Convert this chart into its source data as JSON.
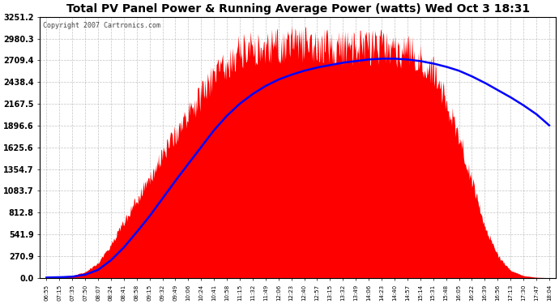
{
  "title": "Total PV Panel Power & Running Average Power (watts) Wed Oct 3 18:31",
  "copyright": "Copyright 2007 Cartronics.com",
  "background_color": "#ffffff",
  "plot_bg_color": "#ffffff",
  "grid_color": "#aaaaaa",
  "fill_color": "#ff0000",
  "line_color": "#0000ff",
  "yticks": [
    0.0,
    270.9,
    541.9,
    812.8,
    1083.7,
    1354.7,
    1625.6,
    1896.6,
    2167.5,
    2438.4,
    2709.4,
    2980.3,
    3251.2
  ],
  "ymax": 3251.2,
  "xtick_labels": [
    "06:55",
    "07:15",
    "07:35",
    "07:50",
    "08:07",
    "08:24",
    "08:41",
    "08:58",
    "09:15",
    "09:32",
    "09:49",
    "10:06",
    "10:24",
    "10:41",
    "10:58",
    "11:15",
    "11:32",
    "11:49",
    "12:06",
    "12:23",
    "12:40",
    "12:57",
    "13:15",
    "13:32",
    "13:49",
    "14:06",
    "14:23",
    "14:40",
    "14:57",
    "15:14",
    "15:31",
    "15:48",
    "16:05",
    "16:22",
    "16:39",
    "16:56",
    "17:13",
    "17:30",
    "17:47",
    "18:04"
  ],
  "pv_data_y": [
    10,
    15,
    30,
    80,
    200,
    450,
    750,
    1050,
    1350,
    1650,
    1950,
    2200,
    2450,
    2700,
    2900,
    3050,
    3100,
    3120,
    3130,
    3140,
    3150,
    3120,
    3100,
    3080,
    3090,
    3100,
    3090,
    3070,
    3050,
    2950,
    2800,
    2400,
    1900,
    1300,
    700,
    300,
    100,
    30,
    8,
    2
  ],
  "avg_data_y": [
    5,
    8,
    15,
    40,
    100,
    220,
    380,
    570,
    770,
    990,
    1210,
    1420,
    1630,
    1840,
    2020,
    2170,
    2290,
    2390,
    2470,
    2530,
    2580,
    2620,
    2650,
    2680,
    2700,
    2720,
    2730,
    2730,
    2720,
    2700,
    2670,
    2630,
    2580,
    2510,
    2430,
    2340,
    2250,
    2150,
    2040,
    1900
  ],
  "title_fontsize": 10,
  "copyright_fontsize": 6,
  "ytick_fontsize": 7,
  "xtick_fontsize": 5
}
